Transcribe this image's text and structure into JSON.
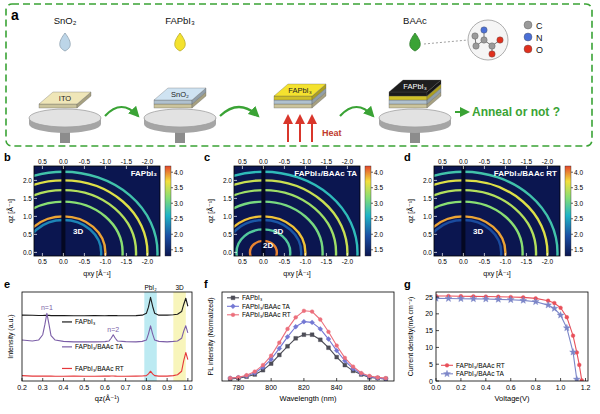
{
  "diagram": {
    "panel_label": "a",
    "drops": [
      "SnO₂",
      "FAPbI₃",
      "BAAc"
    ],
    "layers": [
      "ITO",
      "SnO₂",
      "FAPbI₃",
      "FAPbI₃"
    ],
    "heat": "Heat",
    "question": "Anneal or not ?",
    "atoms": [
      {
        "label": "C",
        "color": "#9a9a9a"
      },
      {
        "label": "N",
        "color": "#4a6fd6"
      },
      {
        "label": "O",
        "color": "#e0301e"
      }
    ]
  },
  "chart_data": [
    {
      "type": "giwaxs",
      "panel_label": "b",
      "title": "FAPbI₃",
      "x_label": "qxy [Å⁻¹]",
      "y_label": "qz [Å⁻¹]",
      "xlim": [
        0.7,
        -2.3
      ],
      "ylim": [
        -0.1,
        2.4
      ],
      "xticks": [
        0.5,
        {
          "value": 0,
          "label": "0.0"
        },
        -0.5,
        {
          "value": -1,
          "label": "-1.0"
        },
        -1.5,
        {
          "value": -2,
          "label": "-2.0"
        }
      ],
      "yticks": [
        {
          "value": 0,
          "label": "0.0"
        },
        0.5,
        {
          "value": 1,
          "label": "1.0"
        },
        1.5,
        {
          "value": 2,
          "label": "2.0"
        }
      ],
      "colorbar_lim": [
        1.3,
        4.2
      ],
      "colorbar_ticks": [
        1.5,
        {
          "value": 2,
          "label": "2.0"
        },
        2.5,
        {
          "value": 3,
          "label": "3.0"
        },
        3.5,
        {
          "value": 4,
          "label": "4.0"
        }
      ],
      "rings": [
        {
          "q": 0.9,
          "intensity": 2.3
        },
        {
          "q": 1.0,
          "intensity": 3.9
        },
        {
          "q": 1.41,
          "intensity": 3.2
        },
        {
          "q": 1.73,
          "intensity": 3.4
        },
        {
          "q": 2.0,
          "intensity": 3.6
        },
        {
          "q": 2.24,
          "intensity": 2.8
        }
      ],
      "annotations": [
        {
          "text": "3D",
          "q": 1.0
        }
      ]
    },
    {
      "type": "giwaxs",
      "panel_label": "c",
      "title": "FAPbI₃/BAAc TA",
      "x_label": "qxy [Å⁻¹]",
      "y_label": "qz [Å⁻¹]",
      "xlim": [
        0.7,
        -2.3
      ],
      "ylim": [
        -0.1,
        2.4
      ],
      "xticks": [
        0.5,
        {
          "value": 0,
          "label": "0.0"
        },
        -0.5,
        {
          "value": -1,
          "label": "-1.0"
        },
        -1.5,
        {
          "value": -2,
          "label": "-2.0"
        }
      ],
      "yticks": [
        {
          "value": 0,
          "label": "0.0"
        },
        0.5,
        {
          "value": 1,
          "label": "1.0"
        },
        1.5,
        {
          "value": 2,
          "label": "2.0"
        }
      ],
      "colorbar_lim": [
        1.3,
        4.2
      ],
      "colorbar_ticks": [
        1.5,
        {
          "value": 2,
          "label": "2.0"
        },
        2.5,
        {
          "value": 3,
          "label": "3.0"
        },
        3.5,
        {
          "value": 4,
          "label": "4.0"
        }
      ],
      "rings": [
        {
          "q": 0.32,
          "intensity": 4.0
        },
        {
          "q": 0.64,
          "intensity": 2.9
        },
        {
          "q": 0.9,
          "intensity": 2.0
        },
        {
          "q": 1.0,
          "intensity": 3.8
        },
        {
          "q": 1.41,
          "intensity": 3.1
        },
        {
          "q": 1.73,
          "intensity": 3.3
        },
        {
          "q": 2.0,
          "intensity": 3.5
        },
        {
          "q": 2.24,
          "intensity": 2.7
        }
      ],
      "annotations": [
        {
          "text": "3D",
          "q": 1.0
        },
        {
          "text": "2D",
          "q": 0.32
        }
      ]
    },
    {
      "type": "giwaxs",
      "panel_label": "d",
      "title": "FAPbI₃/BAAc RT",
      "x_label": "qxy [Å⁻¹]",
      "y_label": "qz [Å⁻¹]",
      "xlim": [
        0.7,
        -2.3
      ],
      "ylim": [
        -0.1,
        2.4
      ],
      "xticks": [
        0.5,
        {
          "value": 0,
          "label": "0.0"
        },
        -0.5,
        {
          "value": -1,
          "label": "-1.0"
        },
        -1.5,
        {
          "value": -2,
          "label": "-2.0"
        }
      ],
      "yticks": [
        {
          "value": 0,
          "label": "0.0"
        },
        0.5,
        {
          "value": 1,
          "label": "1.0"
        },
        1.5,
        {
          "value": 2,
          "label": "2.0"
        }
      ],
      "colorbar_lim": [
        1.3,
        4.2
      ],
      "colorbar_ticks": [
        1.5,
        {
          "value": 2,
          "label": "2.0"
        },
        2.5,
        {
          "value": 3,
          "label": "3.0"
        },
        3.5,
        {
          "value": 4,
          "label": "4.0"
        }
      ],
      "rings": [
        {
          "q": 0.9,
          "intensity": 1.9
        },
        {
          "q": 1.0,
          "intensity": 3.9
        },
        {
          "q": 1.41,
          "intensity": 3.2
        },
        {
          "q": 1.73,
          "intensity": 3.4
        },
        {
          "q": 2.0,
          "intensity": 3.6
        },
        {
          "q": 2.24,
          "intensity": 2.8
        }
      ],
      "annotations": [
        {
          "text": "3D",
          "q": 1.0
        }
      ]
    },
    {
      "type": "line",
      "panel_label": "e",
      "x_label": "qz(Å⁻¹)",
      "y_label": "Intensity (a.u.)",
      "xlim": [
        0.2,
        1.02
      ],
      "xticks": [
        0.2,
        0.3,
        0.4,
        0.5,
        0.6,
        0.7,
        0.8,
        0.9,
        {
          "value": 1,
          "label": "1.0"
        }
      ],
      "ylim": [
        0,
        10
      ],
      "tick_labels": "x",
      "legend": "left",
      "x": [
        0.2,
        0.25,
        0.28,
        0.3,
        0.31,
        0.32,
        0.33,
        0.34,
        0.36,
        0.4,
        0.45,
        0.5,
        0.55,
        0.6,
        0.62,
        0.63,
        0.64,
        0.65,
        0.66,
        0.7,
        0.75,
        0.78,
        0.8,
        0.81,
        0.82,
        0.83,
        0.84,
        0.86,
        0.9,
        0.93,
        0.95,
        0.97,
        0.98,
        0.99,
        1.0
      ],
      "series": [
        {
          "name": "FAPbI₃",
          "color": "#1a1a1a",
          "values": [
            7.4,
            7.38,
            7.36,
            7.36,
            7.37,
            7.38,
            7.37,
            7.35,
            7.35,
            7.34,
            7.33,
            7.33,
            7.34,
            7.33,
            7.34,
            7.35,
            7.36,
            7.35,
            7.34,
            7.33,
            7.34,
            7.4,
            7.6,
            8.3,
            9.4,
            8.4,
            7.6,
            7.4,
            7.4,
            7.45,
            7.5,
            7.8,
            8.6,
            9.3,
            8.4
          ]
        },
        {
          "name": "FAPbI₃/BAAc TA",
          "color": "#7b5ea7",
          "values": [
            4.6,
            4.5,
            4.6,
            5.2,
            6.3,
            7.6,
            6.4,
            5.1,
            4.6,
            4.45,
            4.4,
            4.4,
            4.4,
            4.42,
            4.5,
            4.8,
            5.2,
            4.8,
            4.5,
            4.42,
            4.4,
            4.45,
            4.6,
            5.3,
            6.2,
            5.3,
            4.6,
            4.45,
            4.4,
            4.45,
            4.5,
            4.8,
            5.6,
            6.2,
            5.4
          ],
          "annotations": [
            {
              "text": "n=1",
              "x": 0.32
            },
            {
              "text": "n=2",
              "x": 0.64
            }
          ]
        },
        {
          "name": "FAPbI₃/BAAc RT",
          "color": "#e5383b",
          "values": [
            0.6,
            0.55,
            0.55,
            0.55,
            0.55,
            0.56,
            0.55,
            0.55,
            0.54,
            0.54,
            0.55,
            0.54,
            0.54,
            0.55,
            0.55,
            0.56,
            0.56,
            0.55,
            0.54,
            0.54,
            0.55,
            0.56,
            0.6,
            0.8,
            1.1,
            0.8,
            0.6,
            0.55,
            0.55,
            0.6,
            0.7,
            1.1,
            2.3,
            3.2,
            2.4
          ]
        }
      ],
      "bands": [
        {
          "label": "PbI₂",
          "range": [
            0.79,
            0.85
          ],
          "color": "#8fdcea"
        },
        {
          "label": "3D",
          "range": [
            0.93,
            0.99
          ],
          "color": "#f4ef8e"
        }
      ]
    },
    {
      "type": "line",
      "panel_label": "f",
      "x_label": "Wavelength (nm)",
      "y_label": "PL intensity (Normalized)",
      "xlim": [
        770,
        875
      ],
      "xticks": [
        780,
        800,
        820,
        840,
        860
      ],
      "ylim": [
        -0.03,
        1.2
      ],
      "tick_labels": "x",
      "legend": "top-left",
      "x": [
        775,
        780,
        785,
        790,
        795,
        800,
        805,
        810,
        815,
        820,
        825,
        830,
        835,
        840,
        845,
        850,
        855,
        860,
        865,
        870
      ],
      "series": [
        {
          "name": "FAPbI₃",
          "color": "#4d4d57",
          "marker": "square",
          "values": [
            0.0,
            0.01,
            0.03,
            0.06,
            0.12,
            0.21,
            0.33,
            0.45,
            0.56,
            0.61,
            0.61,
            0.54,
            0.43,
            0.3,
            0.19,
            0.11,
            0.06,
            0.02,
            0.01,
            0.0
          ]
        },
        {
          "name": "FAPbI₃/BAAc TA",
          "color": "#7478d4",
          "marker": "diamond",
          "values": [
            0.01,
            0.02,
            0.04,
            0.08,
            0.16,
            0.27,
            0.42,
            0.58,
            0.72,
            0.79,
            0.78,
            0.69,
            0.55,
            0.39,
            0.25,
            0.14,
            0.07,
            0.03,
            0.01,
            0.0
          ]
        },
        {
          "name": "FAPbI₃/BAAc RT",
          "color": "#ec6f7c",
          "marker": "circle",
          "values": [
            0.01,
            0.02,
            0.05,
            0.1,
            0.19,
            0.32,
            0.5,
            0.69,
            0.85,
            0.94,
            0.93,
            0.82,
            0.65,
            0.46,
            0.29,
            0.17,
            0.08,
            0.04,
            0.02,
            0.01
          ]
        }
      ]
    },
    {
      "type": "line",
      "panel_label": "g",
      "x_label": "Voltage(V)",
      "y_label": "Current density(mA cm⁻²)",
      "xlim": [
        0,
        1.22
      ],
      "xticks": [
        {
          "value": 0,
          "label": "0.0"
        },
        0.2,
        0.4,
        0.6,
        0.8,
        {
          "value": 1,
          "label": "1.0"
        },
        1.2
      ],
      "ylim": [
        0,
        26.5
      ],
      "yticks": [
        0,
        5,
        10,
        15,
        20,
        25
      ],
      "legend": "bottom-left",
      "x": [
        0,
        0.1,
        0.2,
        0.3,
        0.4,
        0.5,
        0.6,
        0.7,
        0.8,
        0.9,
        0.95,
        1.0,
        1.05,
        1.1,
        1.13,
        1.15,
        1.17
      ],
      "series": [
        {
          "name": "FAPbI₃/BAAc RT",
          "color": "#e8505a",
          "marker": "circle",
          "values": [
            25.3,
            25.3,
            25.25,
            25.2,
            25.15,
            25.1,
            25.0,
            24.9,
            24.6,
            23.9,
            23.2,
            21.8,
            19.0,
            13.5,
            8.5,
            4.8,
            0.2
          ]
        },
        {
          "name": "FAPbI₃/BAAc TA",
          "color": "#7c86c8",
          "marker": "star",
          "values": [
            24.6,
            24.55,
            24.5,
            24.45,
            24.4,
            24.3,
            24.2,
            24.0,
            23.6,
            22.6,
            21.6,
            19.6,
            15.8,
            8.6,
            0.5,
            null,
            null
          ]
        }
      ]
    }
  ]
}
